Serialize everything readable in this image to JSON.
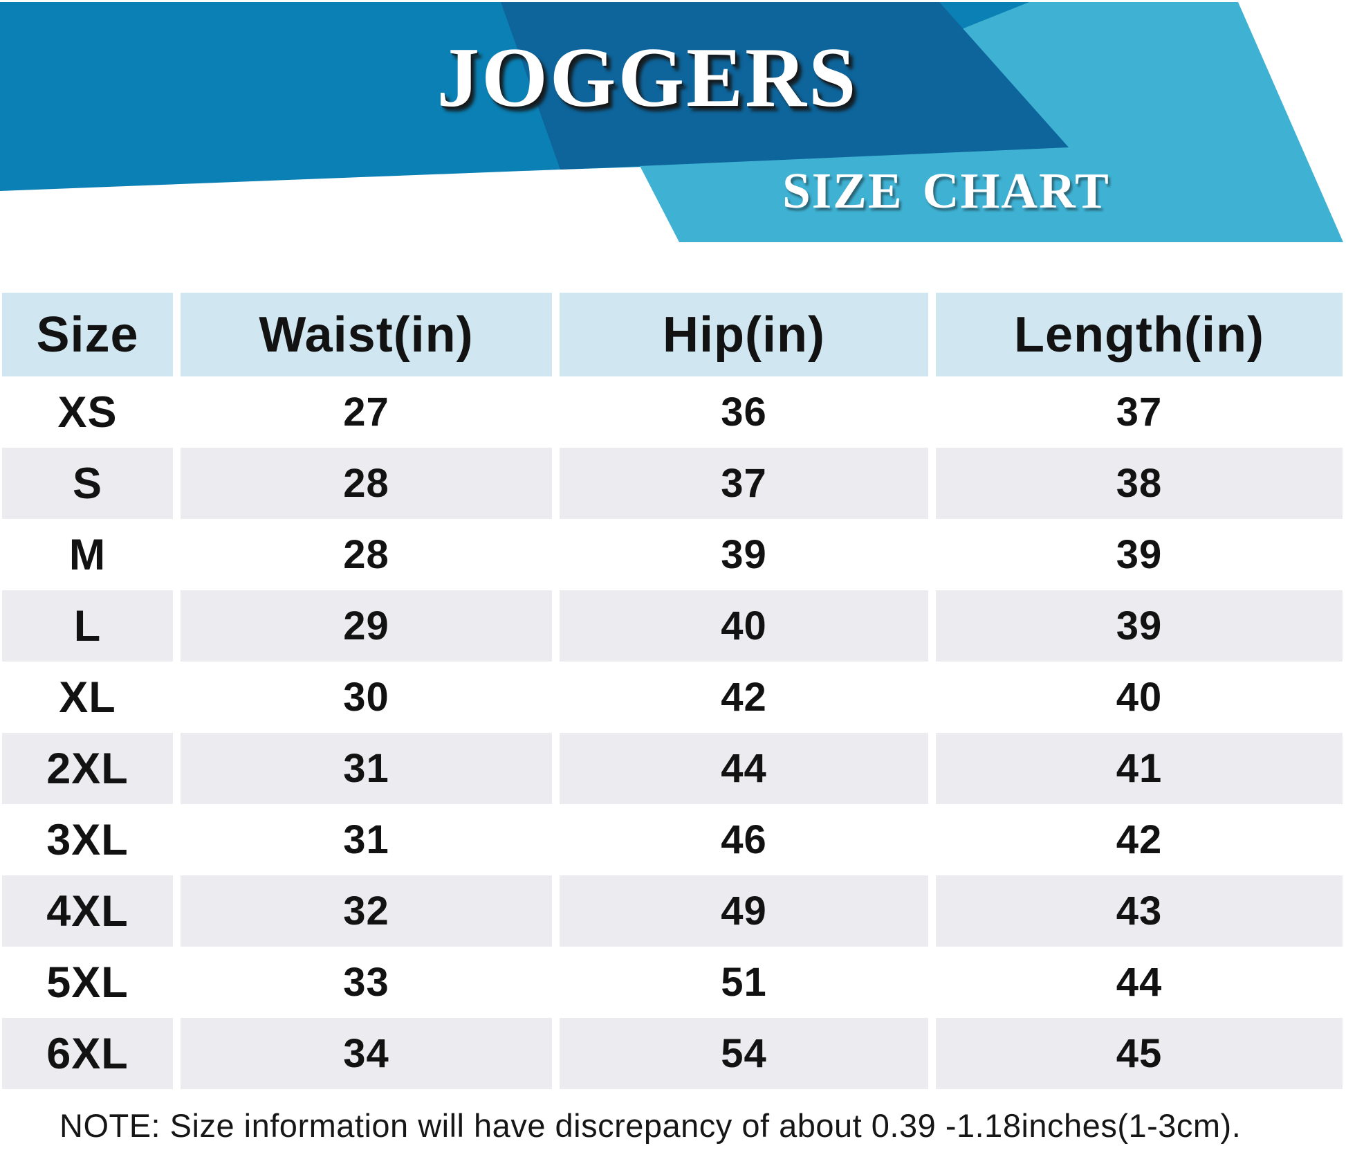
{
  "banner": {
    "title": "JOGGERS",
    "subtitle": "SIZE CHART"
  },
  "chart_data": {
    "type": "table",
    "title": "JOGGERS",
    "subtitle": "SIZE CHART",
    "columns": [
      "Size",
      "Waist(in)",
      "Hip(in)",
      "Length(in)"
    ],
    "rows": [
      [
        "XS",
        "27",
        "36",
        "37"
      ],
      [
        "S",
        "28",
        "37",
        "38"
      ],
      [
        "M",
        "28",
        "39",
        "39"
      ],
      [
        "L",
        "29",
        "40",
        "39"
      ],
      [
        "XL",
        "30",
        "42",
        "40"
      ],
      [
        "2XL",
        "31",
        "44",
        "41"
      ],
      [
        "3XL",
        "31",
        "46",
        "42"
      ],
      [
        "4XL",
        "32",
        "49",
        "43"
      ],
      [
        "5XL",
        "33",
        "51",
        "44"
      ],
      [
        "6XL",
        "34",
        "54",
        "45"
      ]
    ]
  },
  "note": "NOTE: Size information will have discrepancy of about 0.39 -1.18inches(1-3cm).",
  "colors": {
    "banner_blue": "#0b80b4",
    "banner_dark_blue": "#0e659b",
    "banner_cyan": "#3fb2d4",
    "header_bg": "#d0e7f2",
    "row_alt_bg": "#ececf0",
    "text": "#121212"
  }
}
